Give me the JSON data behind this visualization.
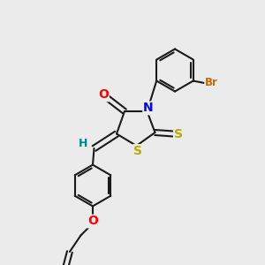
{
  "background_color": "#ebebeb",
  "bond_color": "#1a1a1a",
  "atom_colors": {
    "O": "#ff0000",
    "N": "#0000ee",
    "S": "#bbaa00",
    "Br": "#cc6600",
    "H": "#008888",
    "C": "#1a1a1a"
  },
  "bond_width": 1.5,
  "font_size": 9,
  "xlim": [
    0,
    10
  ],
  "ylim": [
    0,
    10
  ]
}
